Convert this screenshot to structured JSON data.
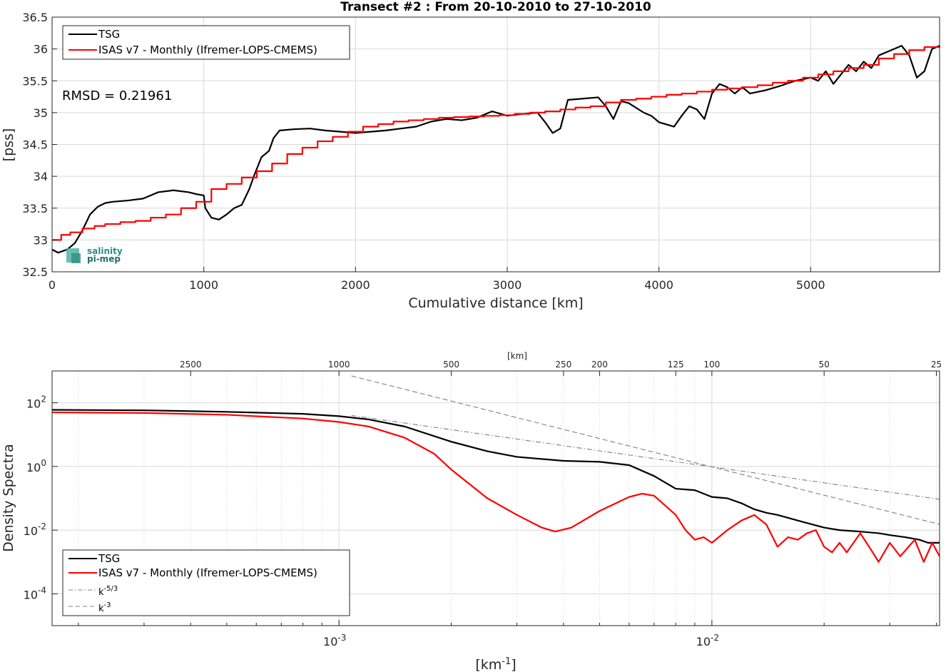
{
  "chart_data": [
    {
      "type": "line",
      "title": "Transect #2 : From 20-10-2010 to 27-10-2010",
      "xlabel": "Cumulative distance [km]",
      "ylabel": "[pss]",
      "xlim": [
        0,
        5850
      ],
      "ylim": [
        32.5,
        36.5
      ],
      "xticks": [
        "0",
        "1000",
        "2000",
        "3000",
        "4000",
        "5000"
      ],
      "yticks": [
        "32.5",
        "33",
        "33.5",
        "34",
        "34.5",
        "35",
        "35.5",
        "36",
        "36.5"
      ],
      "grid": true,
      "legend_position": "top-left",
      "annotation": "RMSD = 0.21961",
      "logo_text": [
        "salinity",
        "pi-mep"
      ],
      "series": [
        {
          "name": "TSG",
          "color": "#000000",
          "points": [
            [
              0,
              32.85
            ],
            [
              40,
              32.8
            ],
            [
              100,
              32.85
            ],
            [
              150,
              32.95
            ],
            [
              200,
              33.15
            ],
            [
              250,
              33.4
            ],
            [
              300,
              33.52
            ],
            [
              350,
              33.58
            ],
            [
              400,
              33.6
            ],
            [
              500,
              33.62
            ],
            [
              600,
              33.65
            ],
            [
              700,
              33.75
            ],
            [
              800,
              33.78
            ],
            [
              900,
              33.75
            ],
            [
              950,
              33.72
            ],
            [
              1000,
              33.7
            ],
            [
              1010,
              33.5
            ],
            [
              1050,
              33.35
            ],
            [
              1100,
              33.32
            ],
            [
              1150,
              33.4
            ],
            [
              1200,
              33.5
            ],
            [
              1250,
              33.55
            ],
            [
              1300,
              33.8
            ],
            [
              1330,
              34.0
            ],
            [
              1380,
              34.3
            ],
            [
              1430,
              34.4
            ],
            [
              1460,
              34.6
            ],
            [
              1500,
              34.72
            ],
            [
              1600,
              34.74
            ],
            [
              1700,
              34.75
            ],
            [
              1800,
              34.72
            ],
            [
              1900,
              34.7
            ],
            [
              2000,
              34.68
            ],
            [
              2100,
              34.7
            ],
            [
              2200,
              34.72
            ],
            [
              2300,
              34.75
            ],
            [
              2400,
              34.78
            ],
            [
              2500,
              34.86
            ],
            [
              2600,
              34.9
            ],
            [
              2700,
              34.88
            ],
            [
              2800,
              34.92
            ],
            [
              2900,
              35.02
            ],
            [
              3000,
              34.95
            ],
            [
              3100,
              34.98
            ],
            [
              3200,
              35.0
            ],
            [
              3250,
              34.85
            ],
            [
              3300,
              34.68
            ],
            [
              3350,
              34.75
            ],
            [
              3400,
              35.2
            ],
            [
              3500,
              35.22
            ],
            [
              3600,
              35.24
            ],
            [
              3650,
              35.1
            ],
            [
              3700,
              34.9
            ],
            [
              3750,
              35.18
            ],
            [
              3800,
              35.15
            ],
            [
              3900,
              35.0
            ],
            [
              3950,
              34.95
            ],
            [
              4000,
              34.85
            ],
            [
              4100,
              34.78
            ],
            [
              4150,
              34.95
            ],
            [
              4200,
              35.1
            ],
            [
              4250,
              35.05
            ],
            [
              4300,
              34.9
            ],
            [
              4350,
              35.3
            ],
            [
              4400,
              35.45
            ],
            [
              4450,
              35.4
            ],
            [
              4500,
              35.3
            ],
            [
              4550,
              35.4
            ],
            [
              4600,
              35.3
            ],
            [
              4700,
              35.35
            ],
            [
              4800,
              35.42
            ],
            [
              4900,
              35.5
            ],
            [
              5000,
              35.55
            ],
            [
              5050,
              35.5
            ],
            [
              5100,
              35.65
            ],
            [
              5150,
              35.45
            ],
            [
              5200,
              35.6
            ],
            [
              5250,
              35.75
            ],
            [
              5300,
              35.65
            ],
            [
              5350,
              35.8
            ],
            [
              5400,
              35.7
            ],
            [
              5450,
              35.9
            ],
            [
              5500,
              35.95
            ],
            [
              5550,
              36.0
            ],
            [
              5600,
              36.05
            ],
            [
              5650,
              35.9
            ],
            [
              5700,
              35.55
            ],
            [
              5750,
              35.65
            ],
            [
              5800,
              36.0
            ],
            [
              5850,
              36.05
            ]
          ]
        },
        {
          "name": "ISAS v7 - Monthly (Ifremer-LOPS-CMEMS)",
          "color": "#ff0000",
          "points": [
            [
              0,
              33.0
            ],
            [
              60,
              33.08
            ],
            [
              120,
              33.12
            ],
            [
              200,
              33.18
            ],
            [
              280,
              33.22
            ],
            [
              350,
              33.25
            ],
            [
              450,
              33.28
            ],
            [
              550,
              33.3
            ],
            [
              650,
              33.35
            ],
            [
              750,
              33.4
            ],
            [
              850,
              33.5
            ],
            [
              950,
              33.6
            ],
            [
              1050,
              33.8
            ],
            [
              1150,
              33.88
            ],
            [
              1250,
              33.98
            ],
            [
              1350,
              34.08
            ],
            [
              1450,
              34.2
            ],
            [
              1550,
              34.35
            ],
            [
              1650,
              34.45
            ],
            [
              1750,
              34.55
            ],
            [
              1850,
              34.62
            ],
            [
              1950,
              34.7
            ],
            [
              2050,
              34.78
            ],
            [
              2150,
              34.82
            ],
            [
              2250,
              34.86
            ],
            [
              2350,
              34.88
            ],
            [
              2450,
              34.9
            ],
            [
              2550,
              34.92
            ],
            [
              2650,
              34.93
            ],
            [
              2750,
              34.94
            ],
            [
              2850,
              34.95
            ],
            [
              2950,
              34.96
            ],
            [
              3050,
              34.98
            ],
            [
              3150,
              35.0
            ],
            [
              3250,
              35.02
            ],
            [
              3350,
              35.05
            ],
            [
              3450,
              35.08
            ],
            [
              3550,
              35.1
            ],
            [
              3650,
              35.16
            ],
            [
              3750,
              35.2
            ],
            [
              3850,
              35.22
            ],
            [
              3950,
              35.25
            ],
            [
              4050,
              35.28
            ],
            [
              4150,
              35.3
            ],
            [
              4250,
              35.33
            ],
            [
              4350,
              35.36
            ],
            [
              4450,
              35.38
            ],
            [
              4550,
              35.4
            ],
            [
              4650,
              35.43
            ],
            [
              4750,
              35.47
            ],
            [
              4850,
              35.5
            ],
            [
              4950,
              35.55
            ],
            [
              5050,
              35.6
            ],
            [
              5150,
              35.65
            ],
            [
              5250,
              35.7
            ],
            [
              5350,
              35.75
            ],
            [
              5450,
              35.85
            ],
            [
              5550,
              35.92
            ],
            [
              5650,
              35.98
            ],
            [
              5750,
              36.03
            ],
            [
              5850,
              36.05
            ]
          ]
        }
      ]
    },
    {
      "type": "line",
      "title": "",
      "xlabel": "[km-1]",
      "ylabel": "Density Spectra",
      "top_xlabel": "[km]",
      "xscale": "log",
      "yscale": "log",
      "xlim": [
        0.00017,
        0.0408
      ],
      "ylim": [
        1e-05,
        1000
      ],
      "xticks": [
        {
          "value": 0.001,
          "base": "10",
          "exp": "-3"
        },
        {
          "value": 0.01,
          "base": "10",
          "exp": "-2"
        }
      ],
      "yticks": [
        {
          "value": 100,
          "base": "10",
          "exp": "2"
        },
        {
          "value": 1,
          "base": "10",
          "exp": "0"
        },
        {
          "value": 0.01,
          "base": "10",
          "exp": "-2"
        },
        {
          "value": 0.0001,
          "base": "10",
          "exp": "-4"
        }
      ],
      "top_xticks": [
        "2500",
        "1000",
        "500",
        "250",
        "200",
        "125",
        "100",
        "50",
        "25"
      ],
      "grid": true,
      "legend_position": "bottom-left",
      "series": [
        {
          "name": "TSG",
          "color": "#000000",
          "points": [
            [
              0.00017,
              60
            ],
            [
              0.0003,
              58
            ],
            [
              0.0005,
              52
            ],
            [
              0.0008,
              45
            ],
            [
              0.001,
              38
            ],
            [
              0.0012,
              30
            ],
            [
              0.0015,
              18
            ],
            [
              0.002,
              6
            ],
            [
              0.0025,
              3
            ],
            [
              0.003,
              2
            ],
            [
              0.004,
              1.5
            ],
            [
              0.005,
              1.4
            ],
            [
              0.006,
              1.1
            ],
            [
              0.007,
              0.5
            ],
            [
              0.008,
              0.2
            ],
            [
              0.009,
              0.18
            ],
            [
              0.01,
              0.11
            ],
            [
              0.011,
              0.1
            ],
            [
              0.012,
              0.07
            ],
            [
              0.013,
              0.045
            ],
            [
              0.014,
              0.035
            ],
            [
              0.015,
              0.03
            ],
            [
              0.017,
              0.02
            ],
            [
              0.02,
              0.012
            ],
            [
              0.022,
              0.01
            ],
            [
              0.025,
              0.009
            ],
            [
              0.028,
              0.008
            ],
            [
              0.03,
              0.007
            ],
            [
              0.033,
              0.006
            ],
            [
              0.036,
              0.005
            ],
            [
              0.038,
              0.004
            ],
            [
              0.0408,
              0.004
            ]
          ]
        },
        {
          "name": "ISAS v7 - Monthly (Ifremer-LOPS-CMEMS)",
          "color": "#ff0000",
          "points": [
            [
              0.00017,
              50
            ],
            [
              0.0003,
              48
            ],
            [
              0.0005,
              42
            ],
            [
              0.0008,
              32
            ],
            [
              0.001,
              25
            ],
            [
              0.0012,
              18
            ],
            [
              0.0015,
              8
            ],
            [
              0.0018,
              2.5
            ],
            [
              0.002,
              0.8
            ],
            [
              0.0025,
              0.1
            ],
            [
              0.003,
              0.03
            ],
            [
              0.0035,
              0.012
            ],
            [
              0.0038,
              0.009
            ],
            [
              0.0042,
              0.012
            ],
            [
              0.005,
              0.04
            ],
            [
              0.006,
              0.11
            ],
            [
              0.0065,
              0.14
            ],
            [
              0.007,
              0.12
            ],
            [
              0.008,
              0.03
            ],
            [
              0.0085,
              0.01
            ],
            [
              0.009,
              0.005
            ],
            [
              0.0095,
              0.006
            ],
            [
              0.01,
              0.004
            ],
            [
              0.011,
              0.01
            ],
            [
              0.012,
              0.02
            ],
            [
              0.013,
              0.03
            ],
            [
              0.014,
              0.015
            ],
            [
              0.015,
              0.003
            ],
            [
              0.016,
              0.006
            ],
            [
              0.017,
              0.005
            ],
            [
              0.018,
              0.008
            ],
            [
              0.019,
              0.01
            ],
            [
              0.02,
              0.003
            ],
            [
              0.021,
              0.002
            ],
            [
              0.022,
              0.004
            ],
            [
              0.023,
              0.002
            ],
            [
              0.025,
              0.008
            ],
            [
              0.027,
              0.002
            ],
            [
              0.028,
              0.001
            ],
            [
              0.03,
              0.004
            ],
            [
              0.032,
              0.0015
            ],
            [
              0.035,
              0.005
            ],
            [
              0.037,
              0.001
            ],
            [
              0.039,
              0.004
            ],
            [
              0.0408,
              0.0015
            ]
          ]
        },
        {
          "name": "k-5/3",
          "name_base": "k",
          "name_exp": "-5/3",
          "color": "#808080",
          "dash": "dashdot",
          "points": [
            [
              0.00108,
              40
            ],
            [
              0.0408,
              0.093
            ]
          ]
        },
        {
          "name": "k-3",
          "name_base": "k",
          "name_exp": "-3",
          "color": "#808080",
          "dash": "dashed",
          "points": [
            [
              0.00108,
              700
            ],
            [
              0.0408,
              0.0152
            ]
          ]
        }
      ]
    }
  ]
}
